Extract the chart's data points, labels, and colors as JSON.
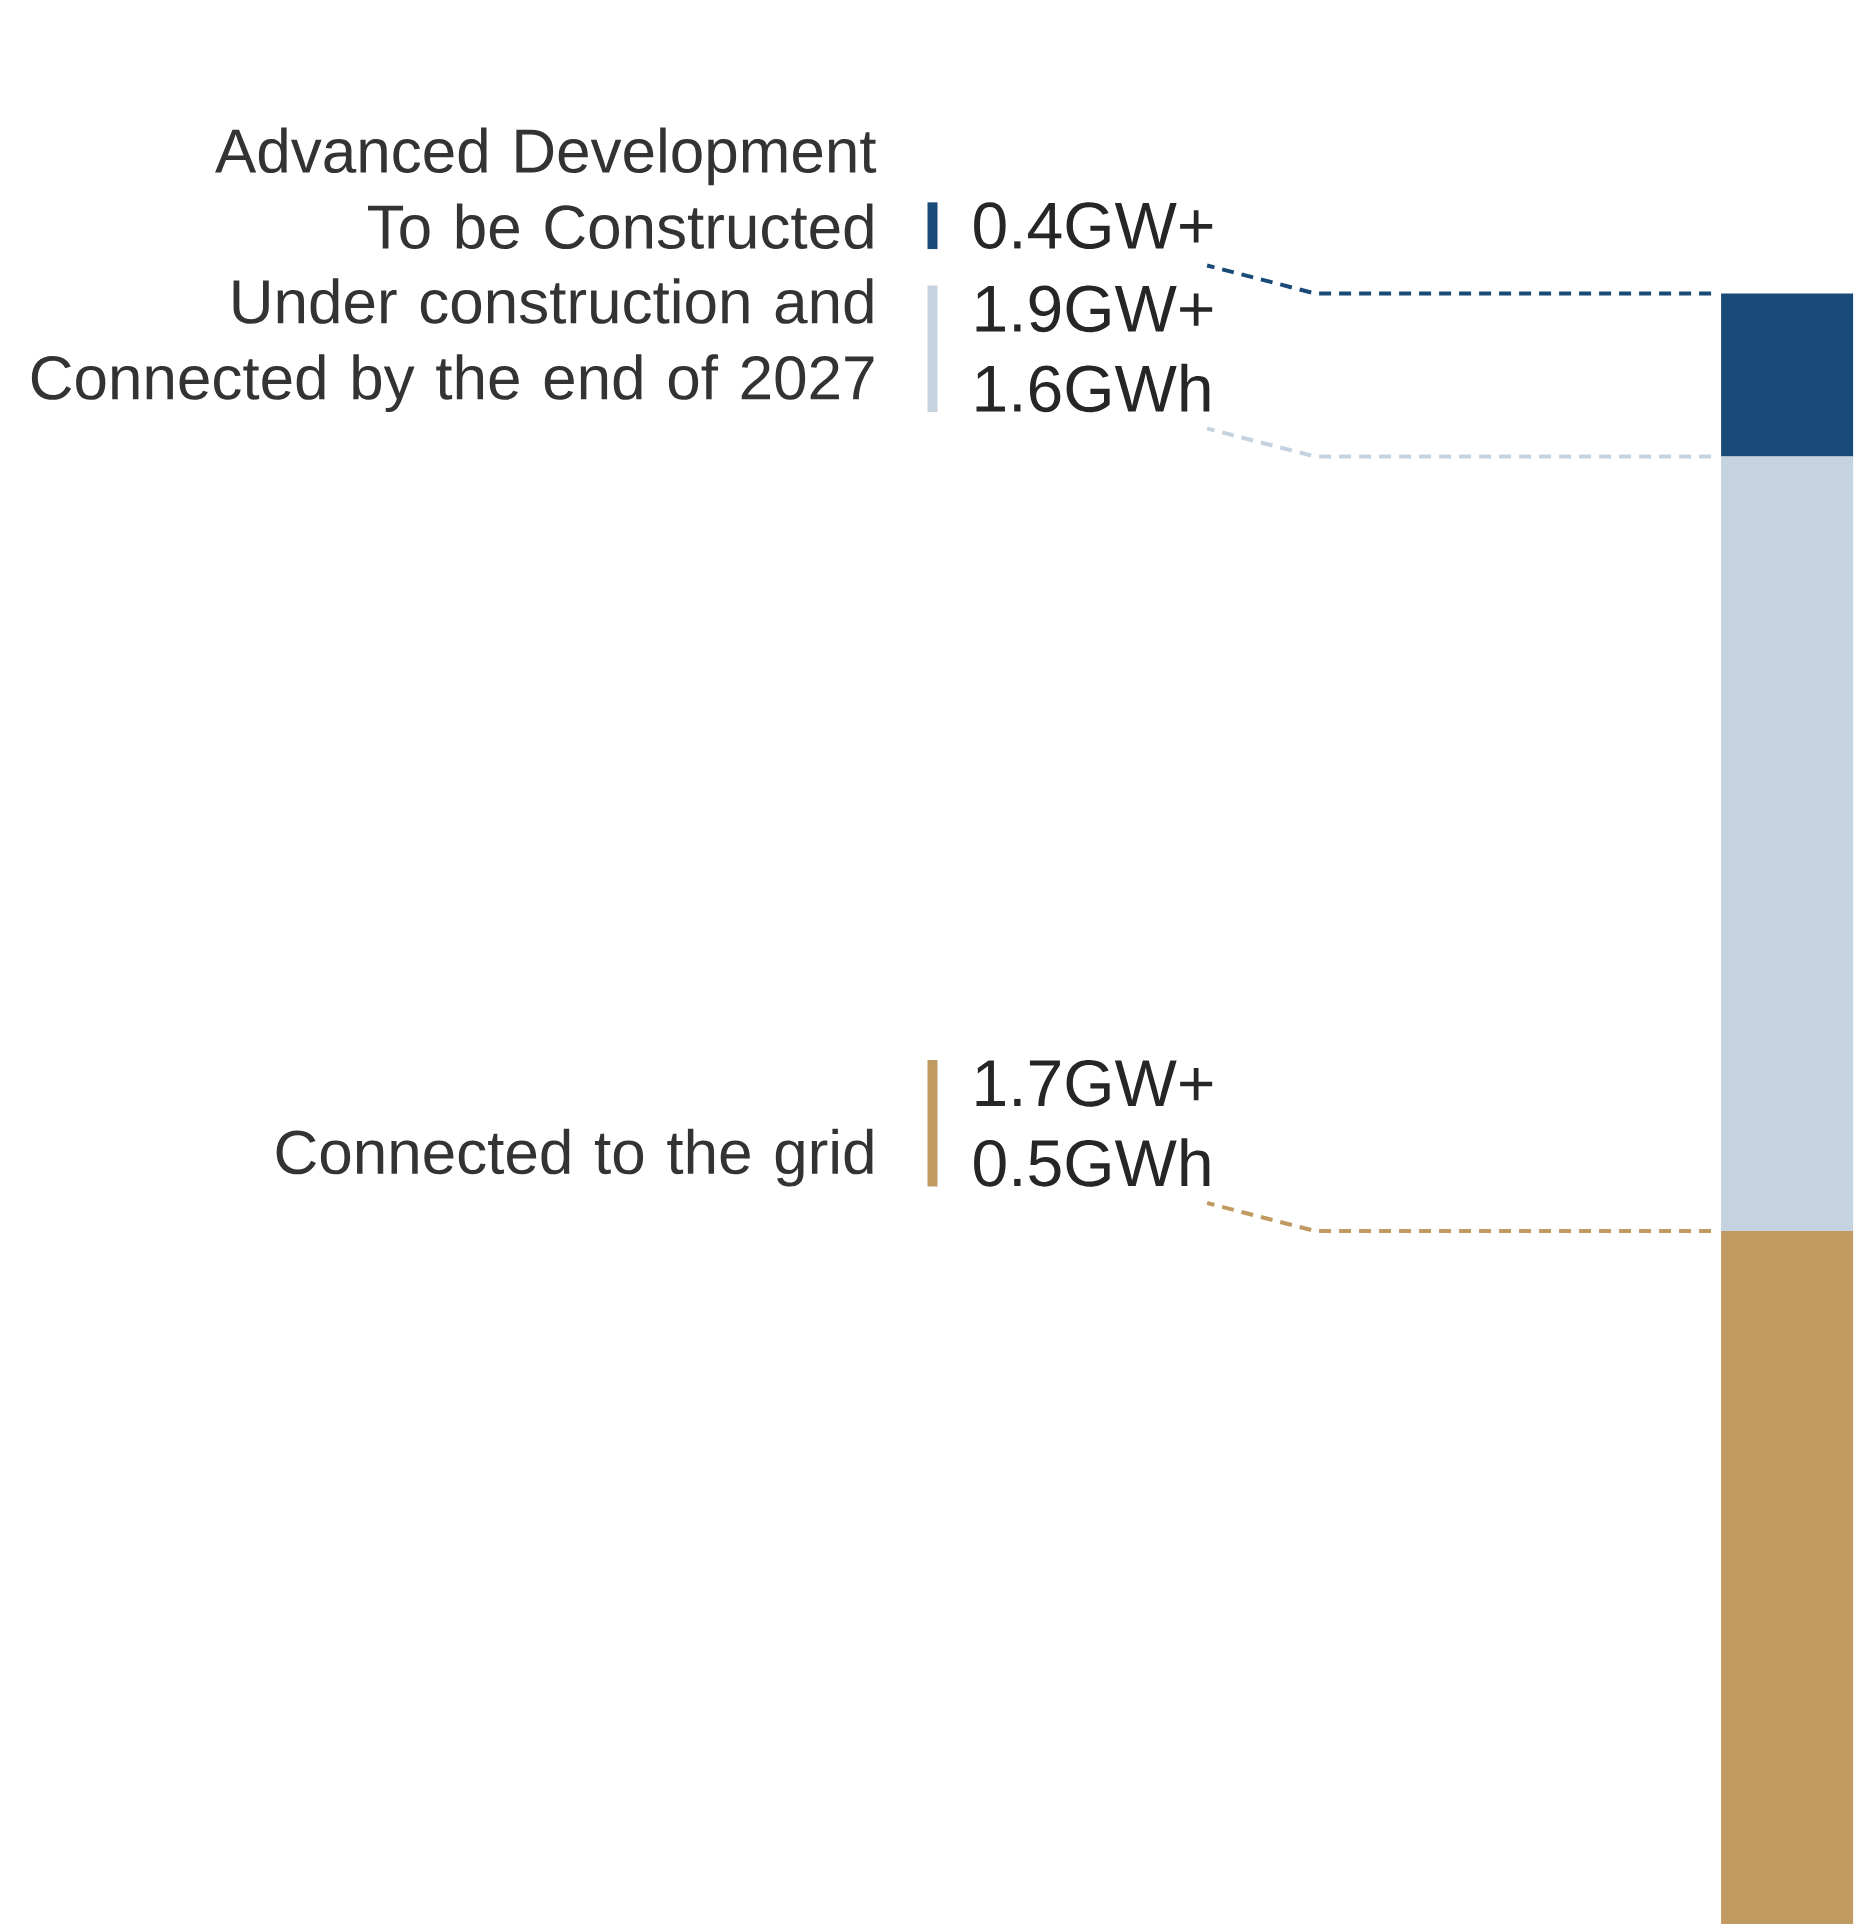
{
  "chart_data": {
    "type": "bar",
    "stacked": true,
    "legend": "left",
    "categories": [
      null
    ],
    "series": [
      {
        "name": "Connected to the grid",
        "color": "#c19a62",
        "values": [
          1.7
        ],
        "value_labels": [
          "1.7GW+ 0.5GWh"
        ]
      },
      {
        "name": "Under construction and Connected by the end of 2027",
        "color": "#c5d3e0",
        "values": [
          1.9
        ],
        "value_labels": [
          "1.9GW+ 1.6GWh"
        ]
      },
      {
        "name": "Advanced Development To be Constructed",
        "color": "#1a4a78",
        "values": [
          0.4
        ],
        "value_labels": [
          "0.4GW+"
        ]
      }
    ]
  }
}
